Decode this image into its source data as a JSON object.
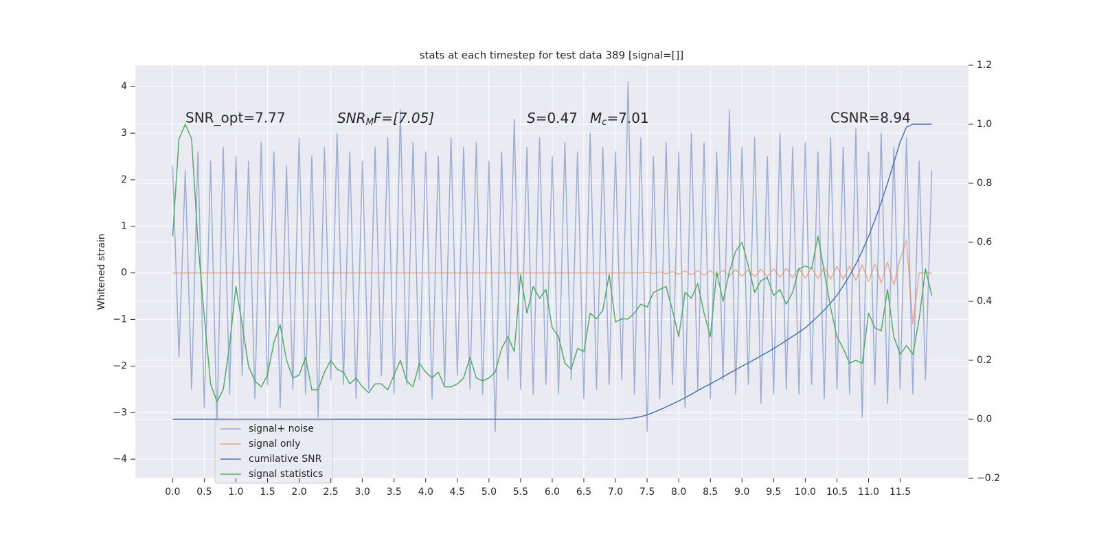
{
  "chart_data": {
    "type": "line",
    "title": "stats at each timestep for test data 389 [signal=[]]",
    "ylabel": "Whitened strain",
    "annotations": [
      "SNR_opt=7.77",
      [
        "SNR",
        "M",
        "F=[7.05]"
      ],
      [
        "S",
        "=0.47"
      ],
      [
        "M",
        "c",
        "=7.01"
      ],
      "CSNR=8.94"
    ],
    "grid": true,
    "legend": "lower left",
    "background": "#eaeaf2",
    "xlim": [
      -0.59,
      12.58
    ],
    "xticks": [
      {
        "value": 0,
        "label": "0.0"
      },
      0.5,
      {
        "value": 1,
        "label": "1.0"
      },
      1.5,
      {
        "value": 2,
        "label": "2.0"
      },
      2.5,
      {
        "value": 3,
        "label": "3.0"
      },
      3.5,
      {
        "value": 4,
        "label": "4.0"
      },
      4.5,
      {
        "value": 5,
        "label": "5.0"
      },
      5.5,
      {
        "value": 6,
        "label": "6.0"
      },
      6.5,
      {
        "value": 7,
        "label": "7.0"
      },
      7.5,
      {
        "value": 8,
        "label": "8.0"
      },
      8.5,
      {
        "value": 9,
        "label": "9.0"
      },
      9.5,
      {
        "value": 10,
        "label": "10.0"
      },
      10.5,
      {
        "value": 11,
        "label": "11.0"
      },
      11.5
    ],
    "ylim": [
      -4.41,
      4.46
    ],
    "yticks": [
      {
        "value": -4,
        "label": "−4"
      },
      {
        "value": -3,
        "label": "−3"
      },
      {
        "value": -2,
        "label": "−2"
      },
      {
        "value": -1,
        "label": "−1"
      },
      0,
      1,
      2,
      3,
      4
    ],
    "y2lim": [
      -0.2,
      1.2
    ],
    "y2ticks": [
      {
        "value": -0.2,
        "label": "−0.2"
      },
      {
        "value": 0,
        "label": "0.0"
      },
      0.2,
      0.4,
      0.6,
      0.8,
      {
        "value": 1,
        "label": "1.0"
      },
      1.2
    ],
    "x": [
      0,
      0.1,
      0.2,
      0.3,
      0.4,
      0.5,
      0.6,
      0.7,
      0.8,
      0.9,
      1,
      1.1,
      1.2,
      1.3,
      1.4,
      1.5,
      1.6,
      1.7,
      1.8,
      1.9,
      2,
      2.1,
      2.2,
      2.3,
      2.4,
      2.5,
      2.6,
      2.7,
      2.8,
      2.9,
      3,
      3.1,
      3.2,
      3.3,
      3.4,
      3.5,
      3.6,
      3.7,
      3.8,
      3.9,
      4,
      4.1,
      4.2,
      4.3,
      4.4,
      4.5,
      4.6,
      4.7,
      4.8,
      4.9,
      5,
      5.1,
      5.2,
      5.3,
      5.4,
      5.5,
      5.6,
      5.7,
      5.8,
      5.9,
      6,
      6.1,
      6.2,
      6.3,
      6.4,
      6.5,
      6.6,
      6.7,
      6.8,
      6.9,
      7,
      7.1,
      7.2,
      7.3,
      7.4,
      7.5,
      7.6,
      7.7,
      7.8,
      7.9,
      8,
      8.1,
      8.2,
      8.3,
      8.4,
      8.5,
      8.6,
      8.7,
      8.8,
      8.9,
      9,
      9.1,
      9.2,
      9.3,
      9.4,
      9.5,
      9.6,
      9.7,
      9.8,
      9.9,
      10,
      10.1,
      10.2,
      10.3,
      10.4,
      10.5,
      10.6,
      10.7,
      10.8,
      10.9,
      11,
      11.1,
      11.2,
      11.3,
      11.4,
      11.5,
      11.6,
      11.7,
      11.8,
      11.9,
      12
    ],
    "series": [
      {
        "name": "signal+ noise",
        "color": "#4c72b0",
        "alpha": 0.5,
        "values": [
          2.3,
          -1.8,
          2.2,
          -2.5,
          2.6,
          -2.9,
          2.4,
          -3.3,
          2.7,
          -2.6,
          2.5,
          -2.2,
          2.4,
          -2.7,
          2.8,
          -2.4,
          2.6,
          -2.9,
          2.3,
          -2.5,
          2.9,
          -2.6,
          2.5,
          -3.1,
          2.7,
          -2.3,
          3.0,
          -2.4,
          2.6,
          -2.7,
          2.4,
          -2.5,
          2.7,
          -2.2,
          2.9,
          -2.6,
          3.5,
          -2.4,
          2.8,
          -2.3,
          2.6,
          -2.7,
          2.5,
          -2.4,
          2.9,
          -2.2,
          2.7,
          -2.5,
          2.8,
          -2.6,
          2.4,
          -3.4,
          2.6,
          -2.3,
          3.3,
          -2.5,
          2.7,
          -2.6,
          2.9,
          -2.4,
          2.5,
          -2.6,
          2.8,
          -2.3,
          2.6,
          -2.7,
          3.0,
          -2.5,
          2.7,
          -2.4,
          2.6,
          -2.3,
          4.1,
          -2.6,
          2.9,
          -3.4,
          2.5,
          -2.7,
          2.8,
          -2.4,
          2.6,
          -2.9,
          3.0,
          -2.5,
          2.8,
          -2.7,
          2.6,
          -2.3,
          3.5,
          -2.6,
          2.7,
          -2.4,
          2.9,
          -2.8,
          2.5,
          -2.6,
          3.0,
          -2.5,
          2.7,
          -2.6,
          2.8,
          -2.4,
          2.6,
          -2.7,
          2.9,
          -2.5,
          2.7,
          -2.6,
          3.1,
          -3.1,
          2.6,
          -2.4,
          3.0,
          -2.8,
          2.7,
          -2.5,
          2.9,
          -2.6,
          2.4,
          -2.3,
          2.2
        ]
      },
      {
        "name": "signal only",
        "color": "#dd8452",
        "alpha": 0.6,
        "values": [
          0,
          0,
          0,
          0,
          0,
          0,
          0,
          0,
          0,
          0,
          0,
          0,
          0,
          0,
          0,
          0,
          0,
          0,
          0,
          0,
          0,
          0,
          0,
          0,
          0,
          0,
          0,
          0,
          0,
          0,
          0,
          0,
          0,
          0,
          0,
          0,
          0,
          0,
          0,
          0,
          0,
          0,
          0,
          0,
          0,
          0,
          0,
          0,
          0,
          0,
          0,
          0,
          0,
          0,
          0,
          0,
          0,
          0,
          0,
          0,
          0,
          0,
          0,
          0,
          0,
          0,
          0,
          0,
          0,
          0,
          0,
          0,
          0,
          0,
          0,
          0.01,
          -0.01,
          0.02,
          -0.02,
          0.03,
          -0.03,
          0.04,
          -0.04,
          0.05,
          -0.05,
          0.05,
          -0.06,
          0.06,
          -0.06,
          0.07,
          -0.07,
          0.07,
          -0.08,
          0.08,
          -0.08,
          0.09,
          -0.09,
          0.1,
          -0.1,
          0.1,
          -0.11,
          0.11,
          -0.12,
          0.12,
          -0.13,
          0.14,
          -0.14,
          0.15,
          -0.16,
          0.17,
          -0.18,
          0.19,
          -0.21,
          0.23,
          -0.26,
          0.3,
          0.7,
          -1.1,
          0,
          0,
          0
        ]
      },
      {
        "name": "cumilative SNR",
        "color": "#4c72b0",
        "axis": "y2",
        "values": [
          0,
          0,
          0,
          0,
          0,
          0,
          0,
          0,
          0,
          0,
          0,
          0,
          0,
          0,
          0,
          0,
          0,
          0,
          0,
          0,
          0,
          0,
          0,
          0,
          0,
          0,
          0,
          0,
          0,
          0,
          0,
          0,
          0,
          0,
          0,
          0,
          0,
          0,
          0,
          0,
          0,
          0,
          0,
          0,
          0,
          0,
          0,
          0,
          0,
          0,
          0,
          0,
          0,
          0,
          0,
          0,
          0,
          0,
          0,
          0,
          0,
          0,
          0,
          0,
          0,
          0,
          0,
          0,
          0,
          0,
          0,
          0.001,
          0.002,
          0.005,
          0.009,
          0.015,
          0.023,
          0.032,
          0.042,
          0.052,
          0.062,
          0.073,
          0.085,
          0.097,
          0.109,
          0.12,
          0.132,
          0.144,
          0.156,
          0.168,
          0.18,
          0.191,
          0.203,
          0.215,
          0.227,
          0.24,
          0.253,
          0.267,
          0.281,
          0.295,
          0.31,
          0.329,
          0.349,
          0.37,
          0.394,
          0.42,
          0.452,
          0.487,
          0.526,
          0.57,
          0.62,
          0.675,
          0.735,
          0.8,
          0.87,
          0.94,
          0.99,
          1.0,
          1.0,
          1.0,
          1.0
        ]
      },
      {
        "name": "signal statistics",
        "color": "#55a868",
        "axis": "y2",
        "values": [
          0.62,
          0.95,
          1.0,
          0.95,
          0.6,
          0.35,
          0.12,
          0.06,
          0.1,
          0.25,
          0.45,
          0.32,
          0.18,
          0.13,
          0.11,
          0.15,
          0.26,
          0.32,
          0.2,
          0.14,
          0.15,
          0.21,
          0.1,
          0.1,
          0.16,
          0.2,
          0.17,
          0.16,
          0.12,
          0.14,
          0.11,
          0.09,
          0.12,
          0.12,
          0.1,
          0.15,
          0.2,
          0.13,
          0.11,
          0.19,
          0.16,
          0.14,
          0.16,
          0.11,
          0.11,
          0.12,
          0.14,
          0.21,
          0.14,
          0.13,
          0.14,
          0.16,
          0.24,
          0.28,
          0.23,
          0.49,
          0.36,
          0.45,
          0.41,
          0.44,
          0.31,
          0.28,
          0.19,
          0.17,
          0.24,
          0.23,
          0.36,
          0.34,
          0.37,
          0.49,
          0.33,
          0.34,
          0.34,
          0.36,
          0.39,
          0.38,
          0.43,
          0.44,
          0.45,
          0.37,
          0.28,
          0.43,
          0.41,
          0.46,
          0.36,
          0.28,
          0.5,
          0.4,
          0.5,
          0.57,
          0.6,
          0.52,
          0.43,
          0.47,
          0.48,
          0.42,
          0.44,
          0.39,
          0.43,
          0.51,
          0.52,
          0.51,
          0.62,
          0.5,
          0.38,
          0.28,
          0.24,
          0.19,
          0.2,
          0.19,
          0.36,
          0.31,
          0.3,
          0.44,
          0.28,
          0.22,
          0.25,
          0.22,
          0.34,
          0.51,
          0.42
        ]
      }
    ]
  }
}
